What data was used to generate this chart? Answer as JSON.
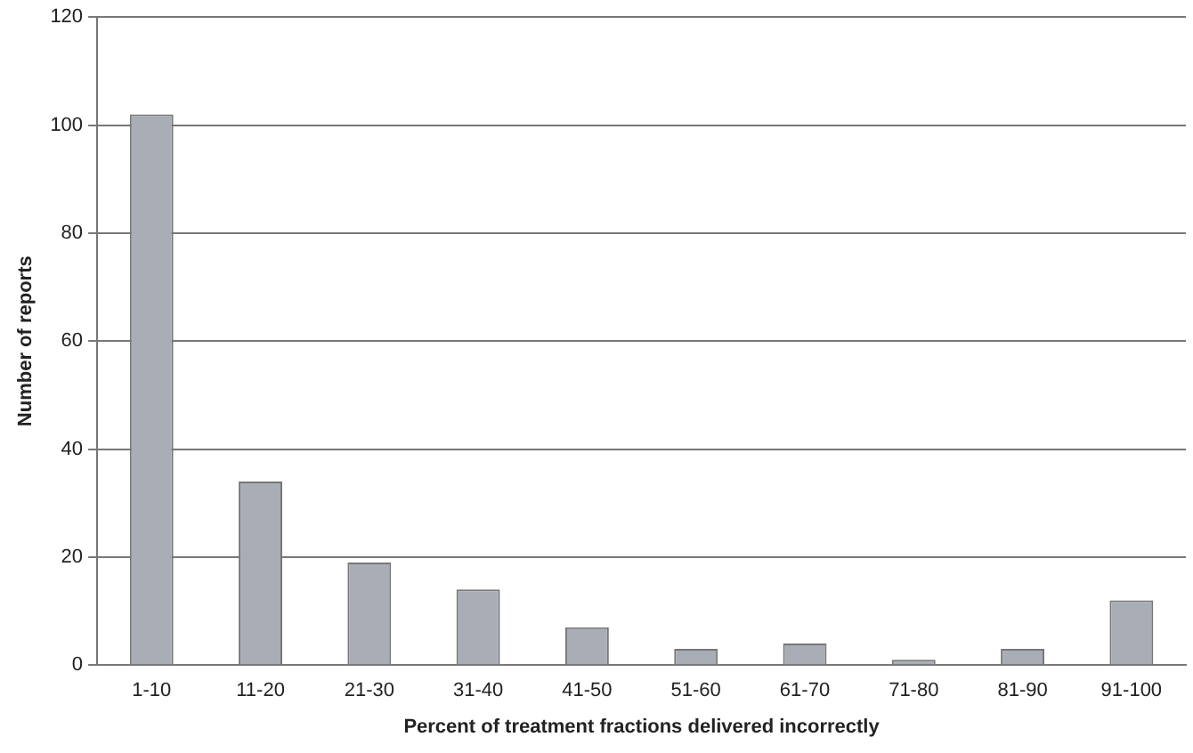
{
  "chart_data": {
    "type": "bar",
    "xlabel": "Percent of treatment fractions delivered incorrectly",
    "ylabel": "Number of reports",
    "categories": [
      "1-10",
      "11-20",
      "21-30",
      "31-40",
      "41-50",
      "51-60",
      "61-70",
      "71-80",
      "81-90",
      "91-100"
    ],
    "values": [
      102,
      34,
      19,
      14,
      7,
      3,
      4,
      1,
      3,
      12
    ],
    "color": "#a9adb5",
    "ylim": [
      0,
      120
    ],
    "yticks": [
      0,
      20,
      40,
      60,
      80,
      100,
      120
    ],
    "grid": "y"
  }
}
